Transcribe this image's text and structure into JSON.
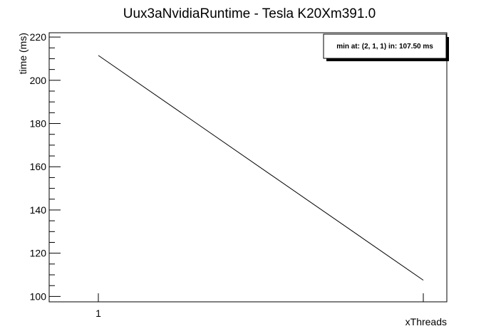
{
  "chart_data": {
    "type": "line",
    "title": "Uux3aNvidiaRuntime - Tesla K20Xm391.0",
    "xlabel": "xThreads",
    "ylabel": "time (ms)",
    "x_tick_labels": [
      "1"
    ],
    "y_ticks": [
      100,
      120,
      140,
      160,
      180,
      200,
      220
    ],
    "ylim": [
      97.5,
      222
    ],
    "series": [
      {
        "x": [
          1,
          2
        ],
        "y": [
          211.5,
          107.5
        ]
      }
    ],
    "annotation": "min at: (2, 1, 1) in: 107.50 ms",
    "grid": false,
    "legend_position": "top-right",
    "colors": {
      "line": "#000000",
      "frame": "#000000",
      "background": "#ffffff",
      "legend_bg": "#ffffff",
      "legend_shadow": "#000000"
    }
  }
}
